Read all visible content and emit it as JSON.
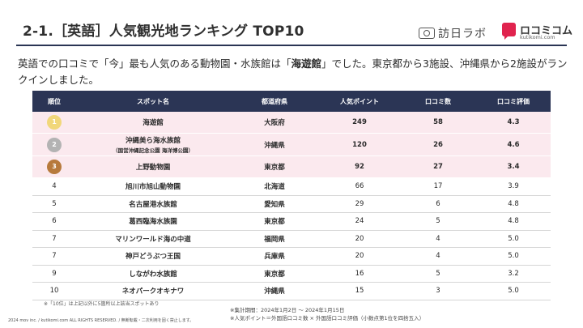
{
  "header": {
    "title": "2-1.［英語］人気観光地ランキング TOP10",
    "logo1_text": "訪日ラボ",
    "logo2_name": "ロコミコム",
    "logo2_sub": "kutikomi.com"
  },
  "lead": {
    "part1": "英語での口コミで「今」最も人気のある動物園・水族館は「",
    "highlight": "海遊館",
    "part2": "」でした。東京都から3施設、沖縄県から2施設がランクインしました。"
  },
  "table": {
    "headers": [
      "順位",
      "スポット名",
      "都道府県",
      "人気ポイント",
      "口コミ数",
      "口コミ評価"
    ],
    "rows": [
      {
        "rank": "1",
        "spot": "海遊館",
        "sub": "",
        "pref": "大阪府",
        "points": "249",
        "reviews": "58",
        "rating": "4.3"
      },
      {
        "rank": "2",
        "spot": "沖縄美ら海水族館",
        "sub": "（国営沖縄記念公園 海洋博公園）",
        "pref": "沖縄県",
        "points": "120",
        "reviews": "26",
        "rating": "4.6"
      },
      {
        "rank": "3",
        "spot": "上野動物園",
        "sub": "",
        "pref": "東京都",
        "points": "92",
        "reviews": "27",
        "rating": "3.4"
      },
      {
        "rank": "4",
        "spot": "旭川市旭山動物園",
        "sub": "",
        "pref": "北海道",
        "points": "66",
        "reviews": "17",
        "rating": "3.9"
      },
      {
        "rank": "5",
        "spot": "名古屋港水族館",
        "sub": "",
        "pref": "愛知県",
        "points": "29",
        "reviews": "6",
        "rating": "4.8"
      },
      {
        "rank": "6",
        "spot": "葛西臨海水族園",
        "sub": "",
        "pref": "東京都",
        "points": "24",
        "reviews": "5",
        "rating": "4.8"
      },
      {
        "rank": "7",
        "spot": "マリンワールド海の中道",
        "sub": "",
        "pref": "福岡県",
        "points": "20",
        "reviews": "4",
        "rating": "5.0"
      },
      {
        "rank": "7",
        "spot": "神戸どうぶつ王国",
        "sub": "",
        "pref": "兵庫県",
        "points": "20",
        "reviews": "4",
        "rating": "5.0"
      },
      {
        "rank": "9",
        "spot": "しながわ水族館",
        "sub": "",
        "pref": "東京都",
        "points": "16",
        "reviews": "5",
        "rating": "3.2"
      },
      {
        "rank": "10",
        "spot": "ネオパークオキナワ",
        "sub": "",
        "pref": "沖縄県",
        "points": "15",
        "reviews": "3",
        "rating": "5.0"
      }
    ]
  },
  "notes": {
    "left": "※「10位」は上記以外に5箇所以上該当スポットあり",
    "right1": "※集計期間：2024年1月2日 ～ 2024年1月15日",
    "right2": "※人気ポイント＝外国語口コミ数 × 外国語口コミ評価（小数点第1位を四捨五入）",
    "copyright": "2024 mov inc. / kutikomi.com ALL RIGHTS RESERVED. / 無断転載・二次利用を固く禁止します。"
  },
  "colors": {
    "header_bg": "#2b3555",
    "top3_row_bg": "#fbe9ee",
    "gold": "#f1d77a",
    "silver": "#b3b3b3",
    "bronze": "#b77a3c",
    "brand_red": "#e0234e"
  }
}
